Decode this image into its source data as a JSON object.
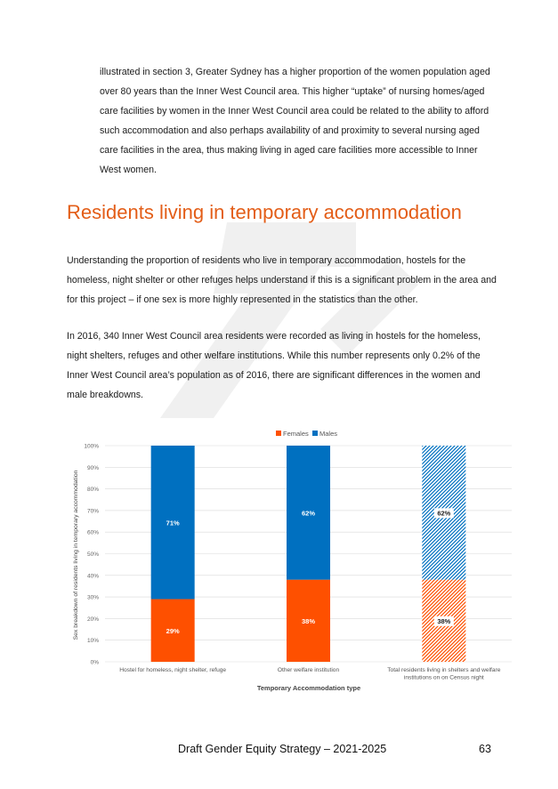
{
  "body": {
    "p1": "illustrated in section 3, Greater Sydney has a higher proportion of the women population aged over 80 years than the Inner West Council area. This higher “uptake” of nursing homes/aged care facilities by women in the Inner West Council area could be related to the ability to afford such accommodation and also perhaps availability of and proximity to several nursing aged care facilities in the area, thus making living in aged care facilities more accessible to Inner West women.",
    "heading": "Residents living in temporary accommodation",
    "p2": "Understanding the proportion of residents who live in temporary accommodation, hostels for the homeless, night shelter or other refuges helps understand if this is a significant problem in the area and for this project – if one sex is more highly represented in the statistics than the other.",
    "p3": "In 2016, 340 Inner West Council area residents were recorded as living in hostels for the homeless, night shelters, refuges and other welfare institutions. While this number represents only 0.2% of the Inner West Council area’s population as of 2016, there are significant differences in the women and male breakdowns."
  },
  "colors": {
    "heading": "#e35d17",
    "females": "#fe5000",
    "males": "#0070c0"
  },
  "chart_data": {
    "type": "bar",
    "stacked": true,
    "categories": [
      "Hostel for homeless, night shelter, refuge",
      "Other welfare institution",
      "Total residents living in shelters and welfare institutions on on Census night"
    ],
    "series": [
      {
        "name": "Females",
        "values": [
          29,
          38,
          38
        ],
        "labels": [
          "29%",
          "38%",
          "38%"
        ]
      },
      {
        "name": "Males",
        "values": [
          71,
          62,
          62
        ],
        "labels": [
          "71%",
          "62%",
          "62%"
        ]
      }
    ],
    "hatched_category": 2,
    "yticks": [
      "0%",
      "10%",
      "20%",
      "30%",
      "40%",
      "50%",
      "60%",
      "70%",
      "80%",
      "90%",
      "100%"
    ],
    "ylim": [
      0,
      100
    ],
    "xlabel": "Temporary Accommodation type",
    "ylabel": "Sex breakdown of residents living in temporary accommodation",
    "legend_position": "top",
    "grid": true
  },
  "footer": {
    "title": "Draft Gender Equity Strategy – 2021-2025",
    "page": "63"
  }
}
